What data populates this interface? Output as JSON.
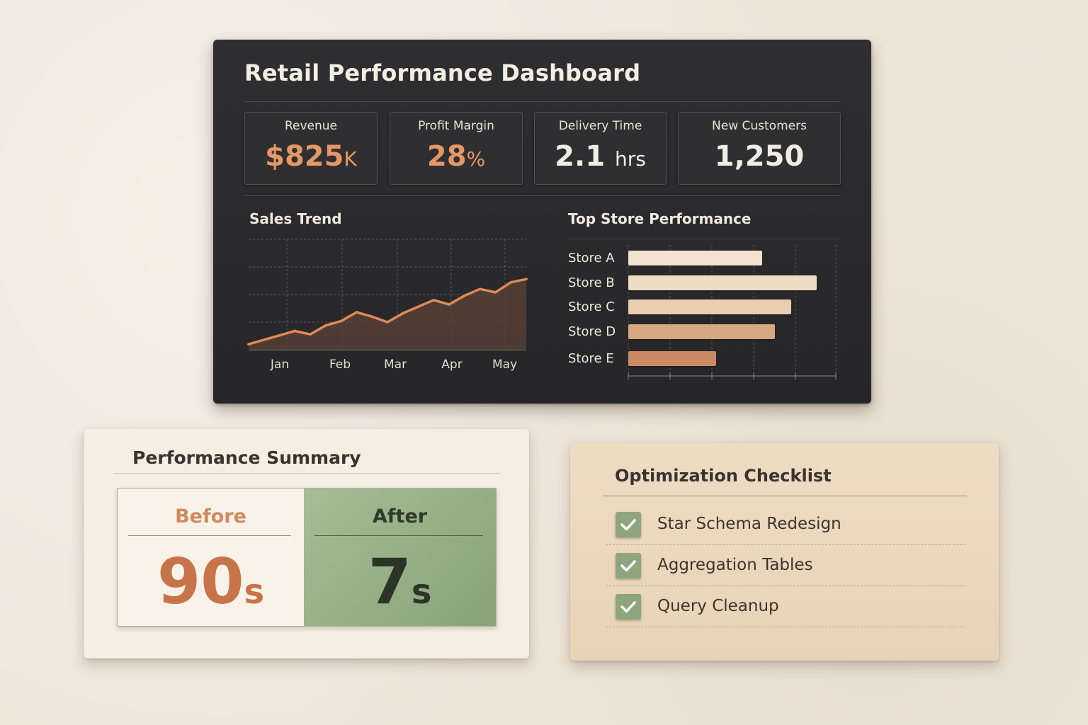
{
  "dashboard": {
    "title": "Retail Performance Dashboard",
    "kpis": [
      {
        "label": "Revenue",
        "value": "$825",
        "unit": "K",
        "color": "#e59866"
      },
      {
        "label": "Profit Margin",
        "value": "28",
        "unit": "%",
        "color": "#e59866"
      },
      {
        "label": "Delivery Time",
        "value": "2.1",
        "unit": "hrs",
        "color": "#f1ece4"
      },
      {
        "label": "New Customers",
        "value": "1,250",
        "unit": "",
        "color": "#f1ece4"
      }
    ],
    "sales_trend_title": "Sales Trend",
    "top_store_title": "Top Store Performance"
  },
  "chart_data": [
    {
      "type": "line",
      "title": "Sales Trend",
      "x_tick_labels": [
        "Jan",
        "Feb",
        "Mar",
        "Apr",
        "May"
      ],
      "y": [
        5,
        9,
        13,
        17,
        14,
        22,
        26,
        34,
        30,
        25,
        33,
        39,
        45,
        41,
        49,
        55,
        52,
        61,
        64
      ],
      "ylim": [
        0,
        100
      ],
      "line_color": "#e08a56",
      "grid": true
    },
    {
      "type": "bar",
      "orientation": "horizontal",
      "title": "Top Store Performance",
      "categories": [
        "Store A",
        "Store B",
        "Store C",
        "Store D",
        "Store E"
      ],
      "values": [
        64,
        90,
        78,
        70,
        42
      ],
      "colors": [
        "#f2e2cf",
        "#efdcc5",
        "#e8cfb0",
        "#d6a982",
        "#cb8a64"
      ],
      "xlim": [
        0,
        100
      ],
      "grid": true
    }
  ],
  "summary": {
    "title": "Performance Summary",
    "before_label": "Before",
    "before_value": "90",
    "before_unit": "s",
    "after_label": "After",
    "after_value": "7",
    "after_unit": "s"
  },
  "checklist": {
    "title": "Optimization Checklist",
    "items": [
      {
        "label": "Star Schema Redesign",
        "checked": true
      },
      {
        "label": "Aggregation Tables",
        "checked": true
      },
      {
        "label": "Query Cleanup",
        "checked": true
      }
    ]
  }
}
